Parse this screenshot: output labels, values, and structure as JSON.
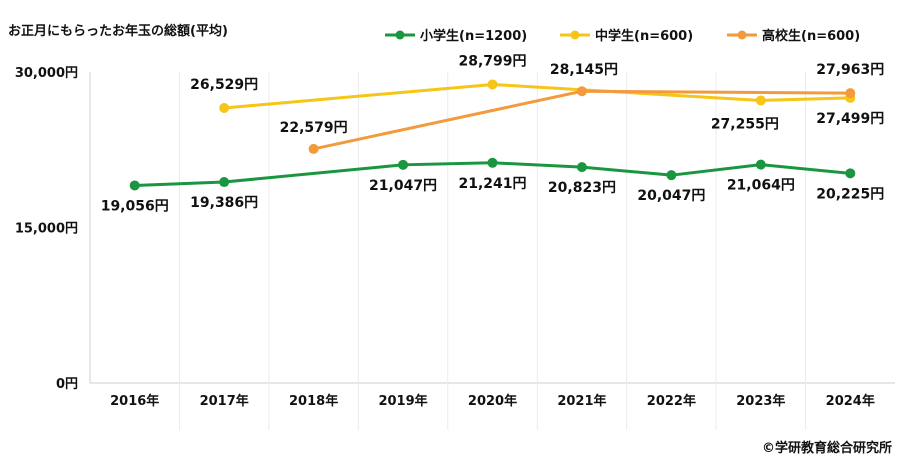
{
  "chart_data": {
    "type": "line",
    "title": "お正月にもらったお年玉の総額(平均)",
    "credit": "©学研教育総合研究所",
    "ylim": [
      0,
      30000
    ],
    "yticks": [
      {
        "value": 0,
        "label": "0円"
      },
      {
        "value": 15000,
        "label": "15,000円"
      },
      {
        "value": 30000,
        "label": "30,000円"
      }
    ],
    "grid": false,
    "legend_position": "top-right",
    "categories": [
      "2016年",
      "2017年",
      "2018年",
      "2019年",
      "2020年",
      "2021年",
      "2022年",
      "2023年",
      "2024年"
    ],
    "series": [
      {
        "name": "小学生(n=1200)",
        "color": "#1a9641",
        "values": [
          19056,
          19386,
          null,
          21047,
          21241,
          20823,
          20047,
          21064,
          20225
        ],
        "labels": [
          "19,056円",
          "19,386円",
          null,
          "21,047円",
          "21,241円",
          "20,823円",
          "20,047円",
          "21,064円",
          "20,225円"
        ]
      },
      {
        "name": "中学生(n=600)",
        "color": "#f5c518",
        "values": [
          null,
          26529,
          null,
          null,
          28799,
          null,
          null,
          27255,
          27499
        ],
        "labels": [
          null,
          "26,529円",
          null,
          null,
          "28,799円",
          null,
          null,
          "27,255円",
          "27,499円"
        ]
      },
      {
        "name": "高校生(n=600)",
        "color": "#f29b3c",
        "values": [
          null,
          null,
          22579,
          null,
          null,
          28145,
          null,
          null,
          27963
        ],
        "labels": [
          null,
          null,
          "22,579円",
          null,
          null,
          "28,145円",
          null,
          null,
          "27,963円"
        ]
      }
    ]
  }
}
